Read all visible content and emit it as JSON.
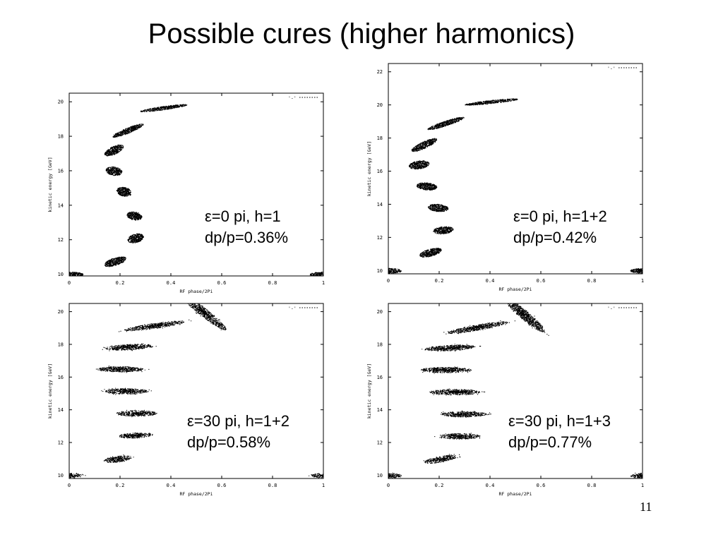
{
  "slide": {
    "title": "Possible cures (higher harmonics)",
    "page_number": "11"
  },
  "captions": [
    {
      "line1": "ε=0 pi, h=1",
      "line2": "dp/p=0.36%"
    },
    {
      "line1": "ε=0 pi, h=1+2",
      "line2": "dp/p=0.42%"
    },
    {
      "line1": "ε=30 pi, h=1+2",
      "line2": "dp/p=0.58%"
    },
    {
      "line1": "ε=30 pi, h=1+3",
      "line2": "dp/p=0.77%"
    }
  ],
  "colors": {
    "ink": "#000000",
    "background": "#ffffff"
  },
  "chart_data": [
    {
      "type": "scatter",
      "xlabel": "RF phase/2Pi",
      "ylabel": "kinetic energy [GeV]",
      "legend": "'-'",
      "legend_position": "top-right",
      "xlim": [
        0,
        1
      ],
      "ylim": [
        9.9,
        20.5
      ],
      "xticks": [
        "0",
        "0.2",
        "0.4",
        "0.6",
        "0.8",
        "1"
      ],
      "yticks": [
        "10",
        "12",
        "14",
        "16",
        "18",
        "20"
      ],
      "grid": false,
      "bunches": [
        {
          "x": 0.0,
          "y": 10.0,
          "hw": 0.055,
          "hh": 0.15,
          "tilt": 0
        },
        {
          "x": 1.0,
          "y": 10.0,
          "hw": 0.055,
          "hh": 0.15,
          "tilt": 0
        },
        {
          "x": 0.18,
          "y": 10.75,
          "hw": 0.045,
          "hh": 0.22,
          "tilt": -18
        },
        {
          "x": 0.26,
          "y": 12.1,
          "hw": 0.032,
          "hh": 0.25,
          "tilt": -15
        },
        {
          "x": 0.255,
          "y": 13.4,
          "hw": 0.03,
          "hh": 0.24,
          "tilt": 10
        },
        {
          "x": 0.215,
          "y": 14.8,
          "hw": 0.03,
          "hh": 0.26,
          "tilt": 12
        },
        {
          "x": 0.175,
          "y": 16.0,
          "hw": 0.032,
          "hh": 0.25,
          "tilt": 8
        },
        {
          "x": 0.175,
          "y": 17.2,
          "hw": 0.04,
          "hh": 0.23,
          "tilt": -25
        },
        {
          "x": 0.23,
          "y": 18.35,
          "hw": 0.065,
          "hh": 0.16,
          "tilt": -22
        },
        {
          "x": 0.37,
          "y": 19.65,
          "hw": 0.095,
          "hh": 0.1,
          "tilt": -8
        }
      ]
    },
    {
      "type": "scatter",
      "xlabel": "RF phase/2Pi",
      "ylabel": "kinetic energy [GeV]",
      "legend": "'-'",
      "legend_position": "top-right",
      "xlim": [
        0,
        1
      ],
      "ylim": [
        9.8,
        22.5
      ],
      "xticks": [
        "0",
        "0.2",
        "0.4",
        "0.6",
        "0.8",
        "1"
      ],
      "yticks": [
        "10",
        "12",
        "14",
        "16",
        "18",
        "20",
        "22"
      ],
      "grid": false,
      "bunches": [
        {
          "x": 0.0,
          "y": 10.0,
          "hw": 0.05,
          "hh": 0.15,
          "tilt": 0
        },
        {
          "x": 1.0,
          "y": 10.0,
          "hw": 0.05,
          "hh": 0.15,
          "tilt": 0
        },
        {
          "x": 0.165,
          "y": 11.1,
          "hw": 0.045,
          "hh": 0.22,
          "tilt": -15
        },
        {
          "x": 0.215,
          "y": 12.45,
          "hw": 0.04,
          "hh": 0.22,
          "tilt": -5
        },
        {
          "x": 0.195,
          "y": 13.8,
          "hw": 0.04,
          "hh": 0.22,
          "tilt": 5
        },
        {
          "x": 0.15,
          "y": 15.1,
          "hw": 0.04,
          "hh": 0.22,
          "tilt": 5
        },
        {
          "x": 0.12,
          "y": 16.4,
          "hw": 0.04,
          "hh": 0.25,
          "tilt": -8
        },
        {
          "x": 0.14,
          "y": 17.6,
          "hw": 0.055,
          "hh": 0.2,
          "tilt": -25
        },
        {
          "x": 0.225,
          "y": 18.9,
          "hw": 0.075,
          "hh": 0.15,
          "tilt": -18
        },
        {
          "x": 0.405,
          "y": 20.2,
          "hw": 0.105,
          "hh": 0.1,
          "tilt": -6
        }
      ]
    },
    {
      "type": "scatter",
      "xlabel": "RF phase/2Pi",
      "ylabel": "kinetic energy [GeV]",
      "legend": "'-'",
      "legend_position": "top-right",
      "xlim": [
        0,
        1
      ],
      "ylim": [
        9.8,
        20.5
      ],
      "xticks": [
        "0",
        "0.2",
        "0.4",
        "0.6",
        "0.8",
        "1"
      ],
      "yticks": [
        "10",
        "12",
        "14",
        "16",
        "18",
        "20"
      ],
      "grid": false,
      "bunches": [
        {
          "x": 0.0,
          "y": 10.0,
          "hw": 0.05,
          "hh": 0.14,
          "tilt": 0
        },
        {
          "x": 1.0,
          "y": 10.0,
          "hw": 0.05,
          "hh": 0.14,
          "tilt": 0
        },
        {
          "x": 0.19,
          "y": 11.0,
          "hw": 0.055,
          "hh": 0.18,
          "tilt": -8
        },
        {
          "x": 0.26,
          "y": 12.45,
          "hw": 0.065,
          "hh": 0.16,
          "tilt": -3
        },
        {
          "x": 0.265,
          "y": 13.8,
          "hw": 0.08,
          "hh": 0.17,
          "tilt": 0
        },
        {
          "x": 0.225,
          "y": 15.15,
          "hw": 0.085,
          "hh": 0.17,
          "tilt": 0
        },
        {
          "x": 0.2,
          "y": 16.5,
          "hw": 0.09,
          "hh": 0.17,
          "tilt": 0
        },
        {
          "x": 0.235,
          "y": 17.85,
          "hw": 0.095,
          "hh": 0.17,
          "tilt": -3
        },
        {
          "x": 0.335,
          "y": 19.15,
          "hw": 0.12,
          "hh": 0.16,
          "tilt": -8
        },
        {
          "x": 0.53,
          "y": 19.95,
          "hw": 0.11,
          "hh": 0.25,
          "tilt": 38
        }
      ]
    },
    {
      "type": "scatter",
      "xlabel": "RF phase/2Pi",
      "ylabel": "kinetic energy [GeV]",
      "legend": "'-'",
      "legend_position": "top-right",
      "xlim": [
        0,
        1
      ],
      "ylim": [
        9.8,
        20.5
      ],
      "xticks": [
        "0",
        "0.2",
        "0.4",
        "0.6",
        "0.8",
        "1"
      ],
      "yticks": [
        "10",
        "12",
        "14",
        "16",
        "18",
        "20"
      ],
      "grid": false,
      "bunches": [
        {
          "x": 0.0,
          "y": 10.0,
          "hw": 0.05,
          "hh": 0.14,
          "tilt": 0
        },
        {
          "x": 1.0,
          "y": 10.0,
          "hw": 0.05,
          "hh": 0.14,
          "tilt": 0
        },
        {
          "x": 0.205,
          "y": 11.0,
          "hw": 0.065,
          "hh": 0.18,
          "tilt": -10
        },
        {
          "x": 0.28,
          "y": 12.4,
          "hw": 0.08,
          "hh": 0.17,
          "tilt": 0
        },
        {
          "x": 0.295,
          "y": 13.75,
          "hw": 0.09,
          "hh": 0.17,
          "tilt": 0
        },
        {
          "x": 0.26,
          "y": 15.1,
          "hw": 0.1,
          "hh": 0.17,
          "tilt": 0
        },
        {
          "x": 0.225,
          "y": 16.45,
          "hw": 0.1,
          "hh": 0.17,
          "tilt": 0
        },
        {
          "x": 0.24,
          "y": 17.8,
          "hw": 0.1,
          "hh": 0.17,
          "tilt": -3
        },
        {
          "x": 0.35,
          "y": 19.05,
          "hw": 0.12,
          "hh": 0.17,
          "tilt": -10
        },
        {
          "x": 0.535,
          "y": 19.8,
          "hw": 0.1,
          "hh": 0.28,
          "tilt": 40
        }
      ]
    }
  ]
}
